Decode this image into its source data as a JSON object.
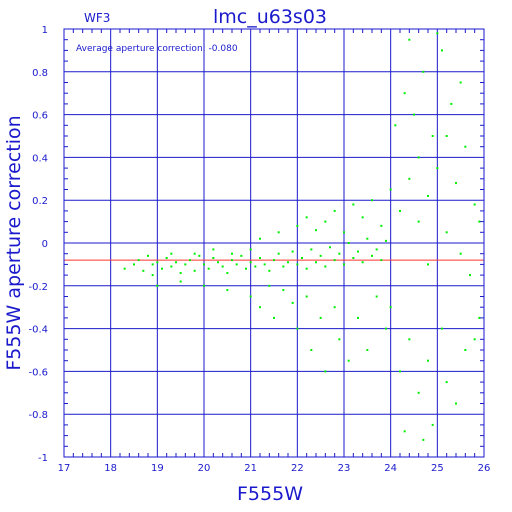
{
  "chart_data": {
    "type": "scatter",
    "title": "lmc_u63s03",
    "chip_label": "WF3",
    "annotation": "Average aperture correction: -0.080",
    "xlabel": "F555W",
    "ylabel": "F555W aperture correction",
    "xlim": [
      17,
      26
    ],
    "ylim": [
      -1,
      1
    ],
    "x_ticks": [
      "17",
      "18",
      "19",
      "20",
      "21",
      "22",
      "23",
      "24",
      "25",
      "26"
    ],
    "y_ticks": [
      "-1",
      "-0.8",
      "-0.6",
      "-0.4",
      "-0.2",
      "0",
      "0.2",
      "0.4",
      "0.6",
      "0.8",
      "1"
    ],
    "grid": true,
    "reference_line": {
      "y": -0.08,
      "color": "#ff3333"
    },
    "colors": {
      "axes": "#1a1acc",
      "points": "#00ee00",
      "reference": "#ff3333",
      "background": "#ffffff"
    },
    "series": [
      {
        "points": [
          [
            18.3,
            -0.12
          ],
          [
            18.5,
            -0.1
          ],
          [
            18.6,
            -0.08
          ],
          [
            18.7,
            -0.13
          ],
          [
            18.8,
            -0.06
          ],
          [
            18.9,
            -0.1
          ],
          [
            19.0,
            -0.09
          ],
          [
            19.1,
            -0.12
          ],
          [
            19.2,
            -0.07
          ],
          [
            19.3,
            -0.11
          ],
          [
            19.4,
            -0.09
          ],
          [
            19.5,
            -0.14
          ],
          [
            19.6,
            -0.1
          ],
          [
            19.7,
            -0.08
          ],
          [
            19.8,
            -0.13
          ],
          [
            19.9,
            -0.06
          ],
          [
            20.0,
            -0.1
          ],
          [
            20.1,
            -0.12
          ],
          [
            20.2,
            -0.07
          ],
          [
            20.3,
            -0.09
          ],
          [
            20.4,
            -0.11
          ],
          [
            20.5,
            -0.14
          ],
          [
            20.6,
            -0.08
          ],
          [
            20.7,
            -0.1
          ],
          [
            20.8,
            -0.06
          ],
          [
            20.9,
            -0.12
          ],
          [
            21.0,
            -0.09
          ],
          [
            21.1,
            -0.11
          ],
          [
            21.2,
            -0.07
          ],
          [
            21.3,
            -0.1
          ],
          [
            21.4,
            -0.13
          ],
          [
            21.5,
            -0.08
          ],
          [
            21.6,
            -0.05
          ],
          [
            21.7,
            -0.11
          ],
          [
            21.8,
            -0.09
          ],
          [
            21.9,
            -0.04
          ],
          [
            22.0,
            -0.1
          ],
          [
            22.1,
            -0.07
          ],
          [
            22.2,
            -0.12
          ],
          [
            22.3,
            -0.03
          ],
          [
            22.4,
            -0.09
          ],
          [
            22.5,
            -0.06
          ],
          [
            22.6,
            -0.11
          ],
          [
            22.7,
            -0.02
          ],
          [
            22.8,
            -0.08
          ],
          [
            22.9,
            -0.05
          ],
          [
            23.0,
            -0.1
          ],
          [
            23.1,
            0.0
          ],
          [
            23.2,
            -0.07
          ],
          [
            23.3,
            -0.04
          ],
          [
            23.4,
            -0.09
          ],
          [
            23.5,
            0.02
          ],
          [
            23.6,
            -0.06
          ],
          [
            23.7,
            -0.03
          ],
          [
            23.8,
            -0.08
          ],
          [
            23.9,
            0.01
          ],
          [
            19.0,
            -0.2
          ],
          [
            19.5,
            -0.18
          ],
          [
            20.0,
            -0.2
          ],
          [
            20.5,
            -0.22
          ],
          [
            21.0,
            -0.25
          ],
          [
            21.2,
            -0.3
          ],
          [
            21.4,
            -0.2
          ],
          [
            21.5,
            -0.35
          ],
          [
            21.7,
            -0.22
          ],
          [
            21.9,
            -0.28
          ],
          [
            22.0,
            -0.4
          ],
          [
            22.2,
            -0.25
          ],
          [
            22.3,
            -0.5
          ],
          [
            22.5,
            -0.35
          ],
          [
            22.6,
            -0.6
          ],
          [
            22.8,
            -0.3
          ],
          [
            22.9,
            -0.45
          ],
          [
            23.1,
            -0.55
          ],
          [
            23.3,
            -0.35
          ],
          [
            23.5,
            -0.5
          ],
          [
            23.7,
            -0.25
          ],
          [
            23.9,
            -0.4
          ],
          [
            24.0,
            -0.3
          ],
          [
            24.2,
            -0.6
          ],
          [
            24.4,
            -0.45
          ],
          [
            24.6,
            -0.7
          ],
          [
            24.8,
            -0.55
          ],
          [
            24.9,
            -0.85
          ],
          [
            25.1,
            -0.4
          ],
          [
            25.2,
            -0.65
          ],
          [
            25.4,
            -0.75
          ],
          [
            25.6,
            -0.5
          ],
          [
            25.8,
            -0.45
          ],
          [
            25.9,
            -0.35
          ],
          [
            24.3,
            -0.88
          ],
          [
            24.7,
            -0.92
          ],
          [
            21.2,
            0.02
          ],
          [
            21.6,
            0.05
          ],
          [
            22.0,
            0.08
          ],
          [
            22.2,
            0.12
          ],
          [
            22.4,
            0.06
          ],
          [
            22.6,
            0.1
          ],
          [
            22.8,
            0.15
          ],
          [
            23.0,
            0.05
          ],
          [
            23.2,
            0.18
          ],
          [
            23.4,
            0.12
          ],
          [
            23.6,
            0.2
          ],
          [
            23.8,
            0.08
          ],
          [
            24.0,
            0.25
          ],
          [
            24.2,
            0.15
          ],
          [
            24.4,
            0.3
          ],
          [
            24.6,
            0.4
          ],
          [
            24.8,
            0.22
          ],
          [
            25.0,
            0.35
          ],
          [
            25.2,
            0.5
          ],
          [
            25.4,
            0.28
          ],
          [
            25.6,
            0.45
          ],
          [
            25.8,
            0.18
          ],
          [
            24.1,
            0.55
          ],
          [
            24.3,
            0.7
          ],
          [
            24.5,
            0.6
          ],
          [
            24.7,
            0.8
          ],
          [
            24.9,
            0.5
          ],
          [
            25.1,
            0.9
          ],
          [
            25.3,
            0.65
          ],
          [
            25.5,
            0.75
          ],
          [
            24.4,
            0.95
          ],
          [
            25.0,
            0.98
          ],
          [
            24.6,
            0.1
          ],
          [
            25.2,
            0.05
          ],
          [
            25.5,
            -0.05
          ],
          [
            25.7,
            -0.15
          ],
          [
            24.8,
            -0.1
          ],
          [
            25.9,
            0.1
          ],
          [
            19.8,
            -0.05
          ],
          [
            20.2,
            -0.03
          ],
          [
            20.6,
            -0.05
          ],
          [
            21.0,
            -0.03
          ],
          [
            18.9,
            -0.15
          ],
          [
            19.3,
            -0.05
          ]
        ]
      }
    ]
  }
}
